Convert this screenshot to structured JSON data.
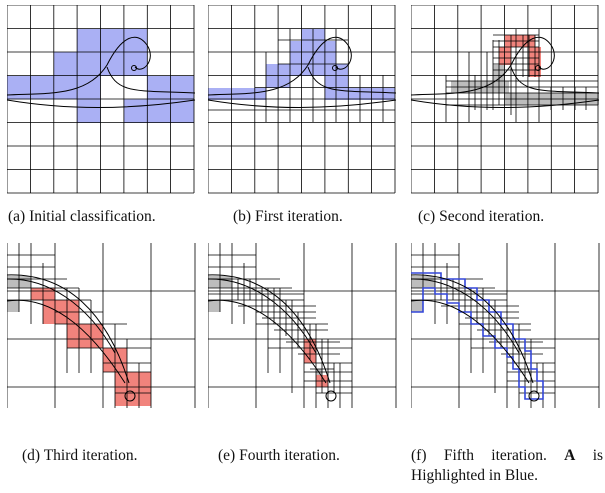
{
  "colors": {
    "blue": "#aab0f4",
    "red": "#f1837c",
    "gray": "#bdbdbd",
    "outline_blue": "#3346d9",
    "line": "#000000"
  },
  "captions": {
    "a": {
      "tag": "(a)",
      "text": "Initial classification."
    },
    "b": {
      "tag": "(b)",
      "text": "First iteration."
    },
    "c": {
      "tag": "(c)",
      "text": "Second iteration."
    },
    "d": {
      "tag": "(d)",
      "text": "Third iteration."
    },
    "e": {
      "tag": "(e)",
      "text": "Fourth iteration."
    },
    "f": {
      "tag": "(f)",
      "text_pre": "Fifth iteration.",
      "symbol": "A",
      "text_post": "is Highlighted in Blue."
    }
  }
}
